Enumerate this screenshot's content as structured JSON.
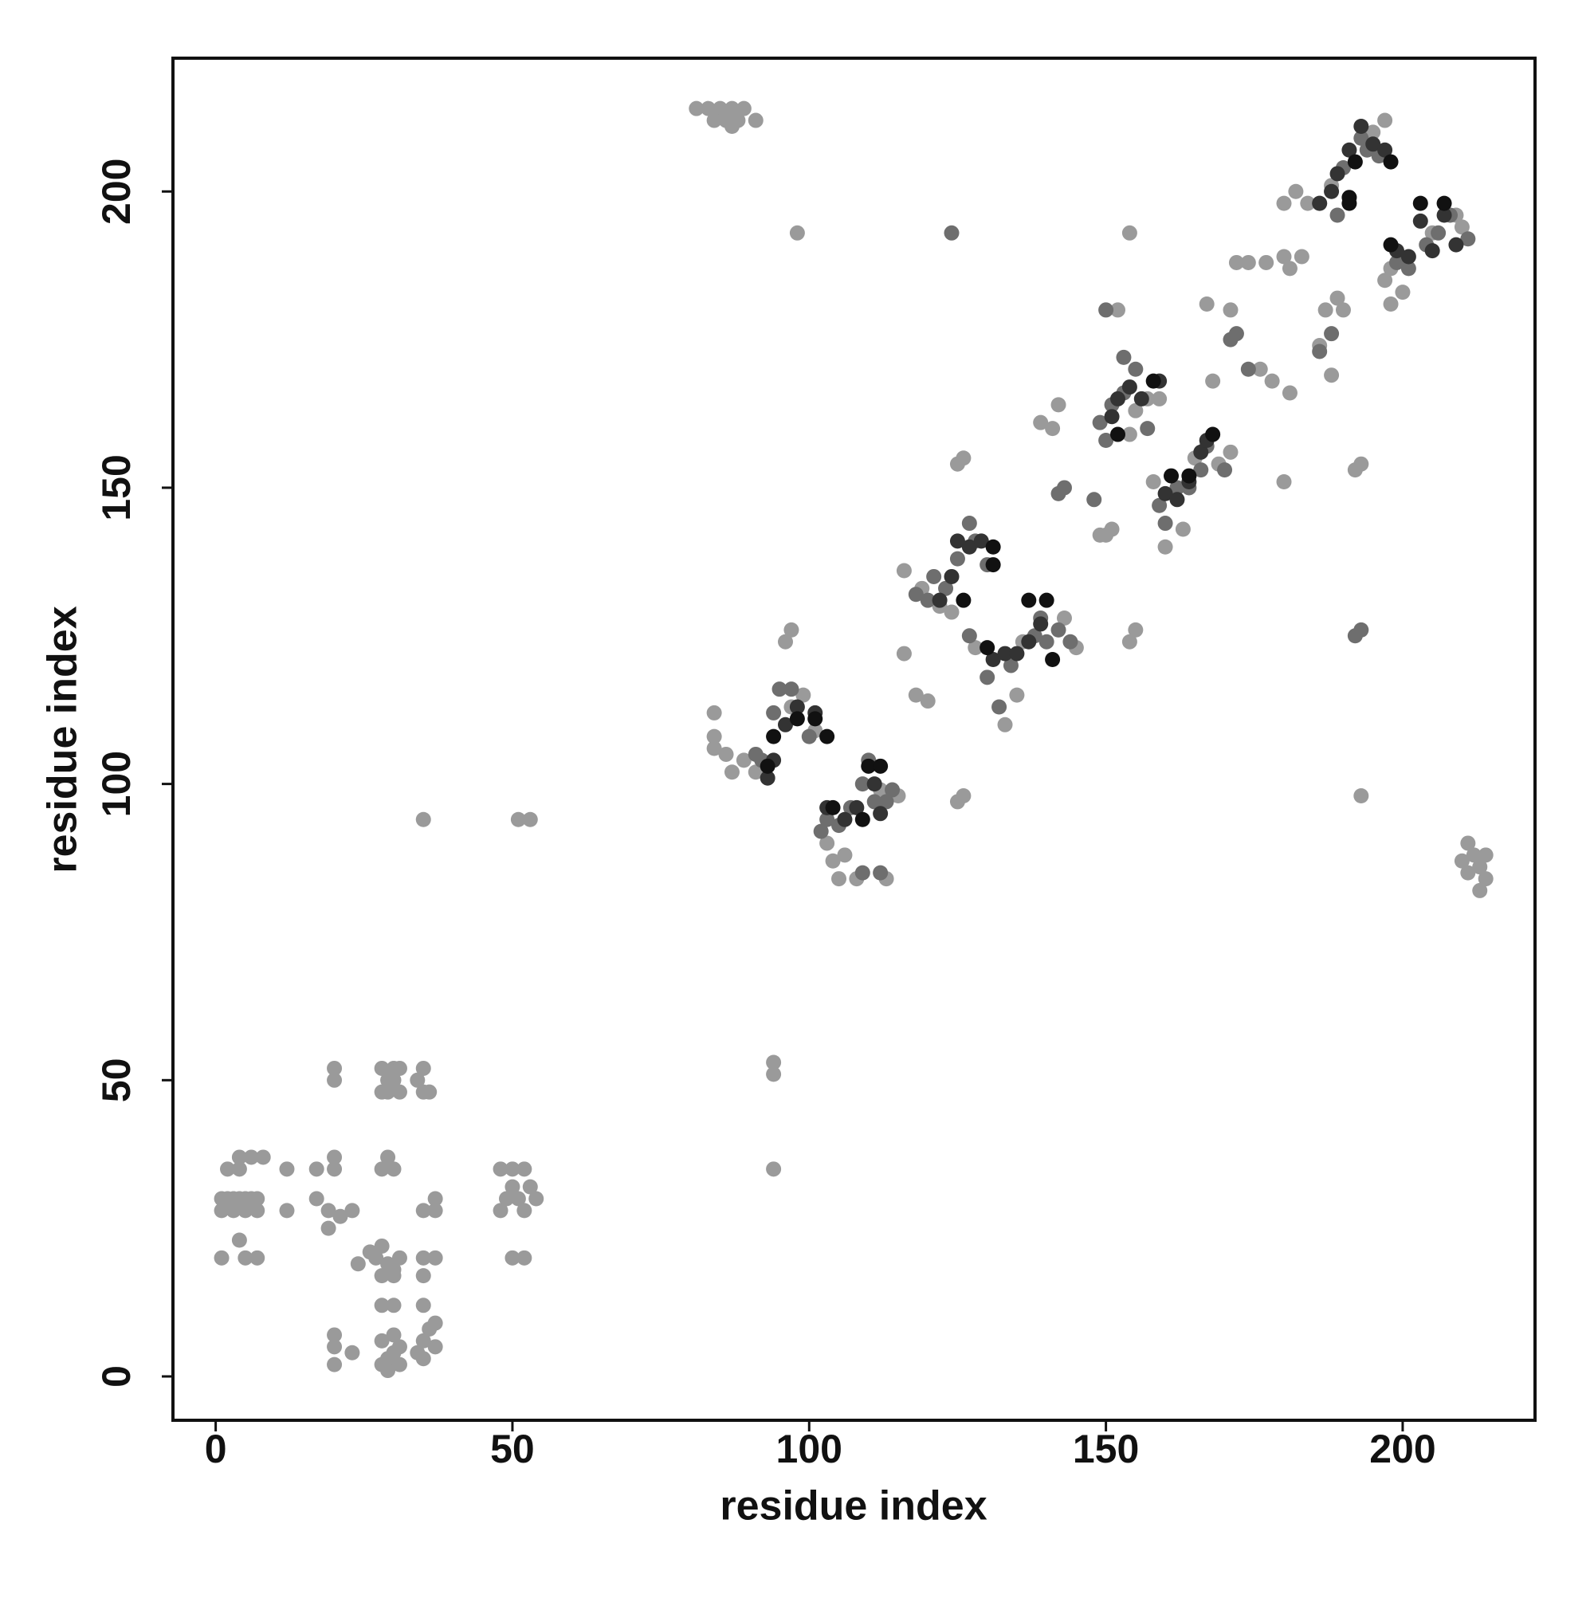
{
  "chart_data": {
    "type": "scatter",
    "x_label": "residue index",
    "y_label": "residue index",
    "xlim": [
      -7.2,
      222.3
    ],
    "ylim": [
      -7.4,
      222.5
    ],
    "xticks": [
      0,
      50,
      100,
      150,
      200
    ],
    "yticks": [
      0,
      50,
      100,
      150,
      200
    ],
    "grid": false,
    "series": [
      {
        "color": "#9a9a9a",
        "x": [
          81,
          83,
          85,
          87,
          89,
          84,
          86,
          88,
          87,
          91,
          1,
          2,
          3,
          4,
          5,
          6,
          7,
          1,
          3,
          5,
          7,
          2,
          4,
          6,
          8,
          4,
          1,
          5,
          7,
          4,
          12,
          12,
          17,
          19,
          21,
          23,
          17,
          20,
          19,
          20,
          28,
          29,
          30,
          31,
          28,
          31,
          29,
          30,
          35,
          34,
          35,
          20,
          20,
          36,
          28,
          29,
          30,
          26,
          27,
          28,
          29,
          30,
          31,
          24,
          28,
          30,
          28,
          29,
          30,
          31,
          28,
          30,
          29,
          31,
          28,
          30,
          34,
          35,
          37,
          36,
          37,
          35,
          20,
          20,
          20,
          23,
          35,
          35,
          37,
          35,
          37,
          37,
          35,
          48,
          49,
          50,
          51,
          52,
          53,
          48,
          50,
          52,
          50,
          52,
          54,
          35,
          51,
          53,
          94,
          94,
          94,
          98,
          154,
          193,
          210,
          211,
          212,
          213,
          214,
          213,
          211,
          214,
          84,
          84,
          84,
          86,
          87,
          89,
          91,
          97,
          99,
          96,
          97,
          101,
          103,
          104,
          105,
          106,
          108,
          113,
          115,
          112,
          116,
          118,
          120,
          116,
          119,
          122,
          124,
          125,
          126,
          125,
          126,
          129,
          128,
          135,
          133,
          136,
          143,
          145,
          154,
          155,
          139,
          141,
          142,
          149,
          150,
          151,
          155,
          157,
          159,
          154,
          152,
          158,
          160,
          163,
          165,
          169,
          171,
          168,
          171,
          167,
          172,
          174,
          177,
          180,
          181,
          183,
          176,
          178,
          181,
          180,
          180,
          182,
          184,
          186,
          188,
          187,
          189,
          190,
          186,
          188,
          192,
          193,
          197,
          198,
          198,
          200,
          205,
          209,
          210,
          197,
          195
        ],
        "values": [
          214,
          214,
          214,
          214,
          214,
          212,
          212,
          212,
          211,
          212,
          30,
          30,
          30,
          30,
          30,
          30,
          30,
          28,
          28,
          28,
          28,
          35,
          35,
          37,
          37,
          37,
          20,
          20,
          20,
          23,
          35,
          28,
          30,
          28,
          27,
          28,
          35,
          37,
          25,
          35,
          48,
          50,
          52,
          48,
          52,
          52,
          48,
          50,
          48,
          50,
          52,
          50,
          52,
          48,
          35,
          37,
          35,
          21,
          20,
          22,
          19,
          18,
          20,
          19,
          17,
          17,
          2,
          3,
          4,
          5,
          6,
          7,
          1,
          2,
          12,
          12,
          4,
          6,
          5,
          8,
          9,
          3,
          2,
          5,
          7,
          4,
          17,
          20,
          20,
          28,
          28,
          30,
          12,
          28,
          30,
          32,
          30,
          28,
          32,
          35,
          35,
          35,
          20,
          20,
          30,
          94,
          94,
          94,
          35,
          51,
          53,
          193,
          193,
          98,
          87,
          85,
          88,
          86,
          84,
          82,
          90,
          88,
          112,
          106,
          108,
          105,
          102,
          104,
          102,
          113,
          115,
          124,
          126,
          109,
          90,
          87,
          84,
          88,
          84,
          84,
          98,
          99,
          122,
          115,
          114,
          136,
          133,
          130,
          129,
          154,
          155,
          97,
          98,
          141,
          123,
          115,
          110,
          124,
          128,
          123,
          124,
          126,
          161,
          160,
          164,
          142,
          142,
          143,
          163,
          165,
          165,
          159,
          180,
          151,
          140,
          143,
          155,
          154,
          156,
          168,
          180,
          181,
          188,
          188,
          188,
          189,
          187,
          189,
          170,
          168,
          166,
          151,
          198,
          200,
          198,
          198,
          201,
          180,
          182,
          180,
          174,
          169,
          153,
          154,
          185,
          187,
          181,
          183,
          193,
          196,
          194,
          212,
          210
        ]
      },
      {
        "color": "#6e6e6e",
        "x": [
          94,
          95,
          97,
          100,
          91,
          92,
          102,
          103,
          105,
          107,
          109,
          111,
          113,
          114,
          110,
          120,
          118,
          121,
          123,
          125,
          127,
          128,
          130,
          127,
          130,
          132,
          134,
          138,
          139,
          142,
          144,
          140,
          148,
          149,
          150,
          151,
          153,
          155,
          153,
          157,
          159,
          160,
          162,
          164,
          166,
          167,
          170,
          171,
          172,
          174,
          186,
          188,
          189,
          190,
          193,
          194,
          196,
          199,
          201,
          204,
          206,
          208,
          211,
          124,
          192,
          193,
          109,
          112,
          150,
          143,
          142
        ],
        "values": [
          112,
          116,
          116,
          108,
          105,
          104,
          92,
          94,
          93,
          96,
          100,
          97,
          97,
          99,
          104,
          131,
          132,
          135,
          133,
          138,
          144,
          141,
          137,
          125,
          118,
          113,
          120,
          125,
          128,
          126,
          124,
          124,
          148,
          161,
          158,
          164,
          166,
          170,
          172,
          160,
          147,
          144,
          150,
          150,
          153,
          157,
          153,
          175,
          176,
          170,
          173,
          176,
          196,
          204,
          209,
          207,
          206,
          188,
          187,
          191,
          193,
          196,
          192,
          193,
          125,
          126,
          85,
          85,
          180,
          150,
          149
        ]
      },
      {
        "color": "#333333",
        "x": [
          93,
          94,
          96,
          98,
          101,
          103,
          106,
          108,
          111,
          112,
          122,
          124,
          125,
          127,
          129,
          131,
          133,
          135,
          137,
          139,
          151,
          152,
          154,
          156,
          159,
          160,
          162,
          164,
          166,
          167,
          186,
          188,
          189,
          191,
          193,
          195,
          197,
          199,
          201,
          203,
          205,
          207,
          209
        ],
        "values": [
          101,
          104,
          110,
          113,
          112,
          96,
          94,
          96,
          100,
          95,
          131,
          135,
          141,
          140,
          141,
          121,
          122,
          122,
          124,
          127,
          162,
          165,
          167,
          165,
          168,
          149,
          148,
          151,
          156,
          158,
          198,
          200,
          203,
          207,
          211,
          208,
          207,
          190,
          189,
          195,
          190,
          196,
          191
        ]
      },
      {
        "color": "#111111",
        "x": [
          93,
          94,
          98,
          101,
          103,
          104,
          110,
          112,
          109,
          126,
          131,
          131,
          130,
          137,
          140,
          141,
          152,
          158,
          161,
          168,
          191,
          192,
          198,
          198,
          203,
          207,
          164,
          191
        ],
        "values": [
          103,
          108,
          111,
          111,
          108,
          96,
          103,
          103,
          94,
          131,
          137,
          140,
          123,
          131,
          131,
          121,
          159,
          168,
          152,
          159,
          198,
          205,
          205,
          191,
          198,
          198,
          152,
          199
        ]
      }
    ]
  }
}
